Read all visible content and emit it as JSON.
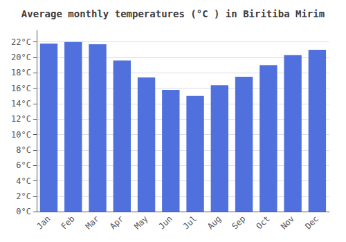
{
  "chart_data": {
    "type": "bar",
    "title": "Average monthly temperatures (°C ) in Biritiba Mirim",
    "categories": [
      "Jan",
      "Feb",
      "Mar",
      "Apr",
      "May",
      "Jun",
      "Jul",
      "Aug",
      "Sep",
      "Oct",
      "Nov",
      "Dec"
    ],
    "values": [
      21.8,
      22.0,
      21.7,
      19.6,
      17.4,
      15.8,
      15.0,
      16.4,
      17.5,
      19.0,
      20.3,
      21.0
    ],
    "ylim": [
      0,
      23.5
    ],
    "yticks": [
      {
        "value": 0,
        "label": "0°C"
      },
      {
        "value": 2,
        "label": "2°C"
      },
      {
        "value": 4,
        "label": "4°C"
      },
      {
        "value": 6,
        "label": "6°C"
      },
      {
        "value": 8,
        "label": "8°C"
      },
      {
        "value": 10,
        "label": "10°C"
      },
      {
        "value": 12,
        "label": "12°C"
      },
      {
        "value": 14,
        "label": "14°C"
      },
      {
        "value": 16,
        "label": "16°C"
      },
      {
        "value": 18,
        "label": "18°C"
      },
      {
        "value": 20,
        "label": "20°C"
      },
      {
        "value": 22,
        "label": "22°C"
      }
    ],
    "grid": true
  }
}
